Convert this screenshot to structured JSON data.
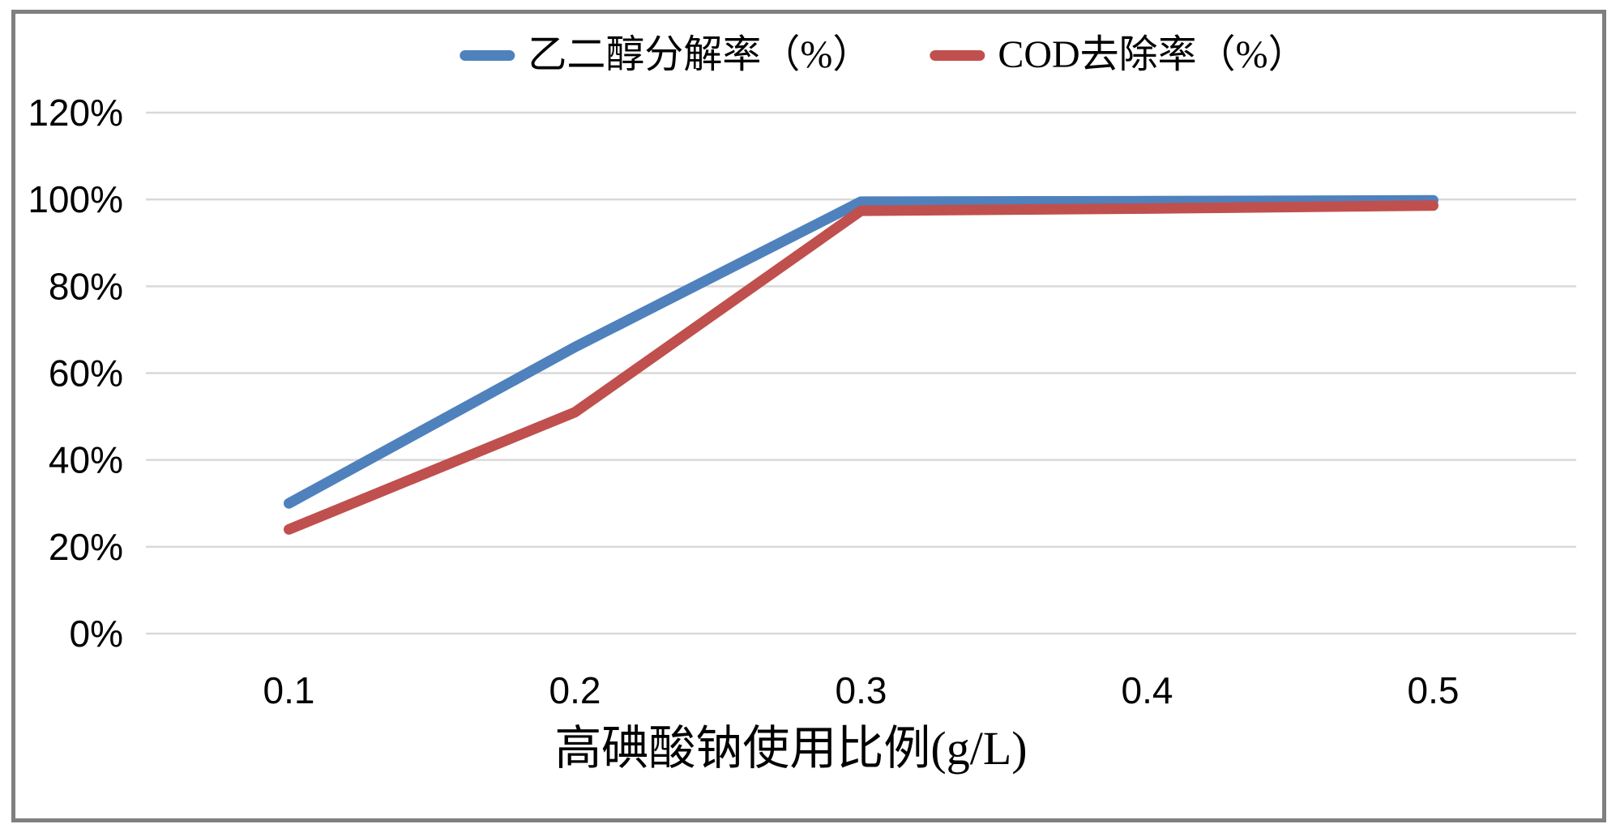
{
  "figure": {
    "background": "#ffffff",
    "border_color": "#808080"
  },
  "chart_data": {
    "type": "line",
    "title": "",
    "x": [
      0.1,
      0.2,
      0.3,
      0.4,
      0.5
    ],
    "categories": [
      "0.1",
      "0.2",
      "0.3",
      "0.4",
      "0.5"
    ],
    "series": [
      {
        "name": "乙二醇分解率（%）",
        "color": "#4F81BD",
        "values": [
          30,
          66,
          99.5,
          99.6,
          99.8
        ]
      },
      {
        "name": "COD去除率（%）",
        "color": "#C0504D",
        "values": [
          24,
          51,
          97.4,
          97.9,
          98.6
        ]
      }
    ],
    "xlabel": "高碘酸钠使用比例(g/L)",
    "ylabel": "",
    "ylim": [
      0,
      120
    ],
    "y_ticks": [
      {
        "v": 0,
        "label": "0%"
      },
      {
        "v": 20,
        "label": "20%"
      },
      {
        "v": 40,
        "label": "40%"
      },
      {
        "v": 60,
        "label": "60%"
      },
      {
        "v": 80,
        "label": "80%"
      },
      {
        "v": 100,
        "label": "100%"
      },
      {
        "v": 120,
        "label": "120%"
      }
    ],
    "grid": true,
    "gridline_color": "#D9D9D9",
    "text_color": "#000000",
    "legend_position": "top-center"
  }
}
